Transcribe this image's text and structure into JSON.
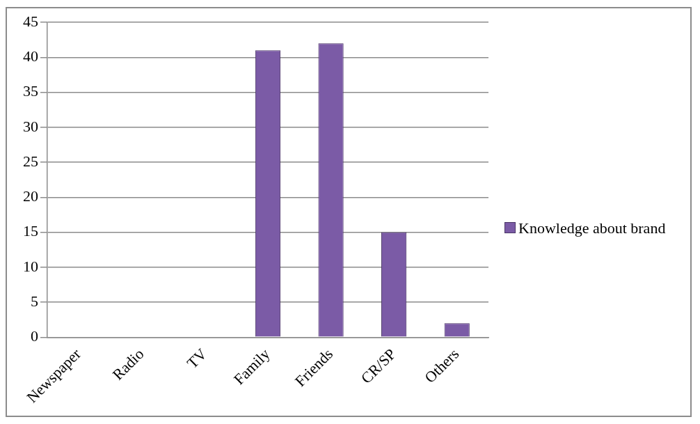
{
  "chart_data": {
    "type": "bar",
    "categories": [
      "Newspaper",
      "Radio",
      "TV",
      "Family",
      "Friends",
      "CR/SP",
      "Others"
    ],
    "series": [
      {
        "name": "Knowledge about brand",
        "color": "#7b5ba6",
        "values": [
          0,
          0,
          0,
          41,
          42,
          15,
          2
        ]
      }
    ],
    "ylim": [
      0,
      45
    ],
    "yticks": [
      0,
      5,
      10,
      15,
      20,
      25,
      30,
      35,
      40,
      45
    ],
    "grid": "y",
    "legend": "right"
  }
}
